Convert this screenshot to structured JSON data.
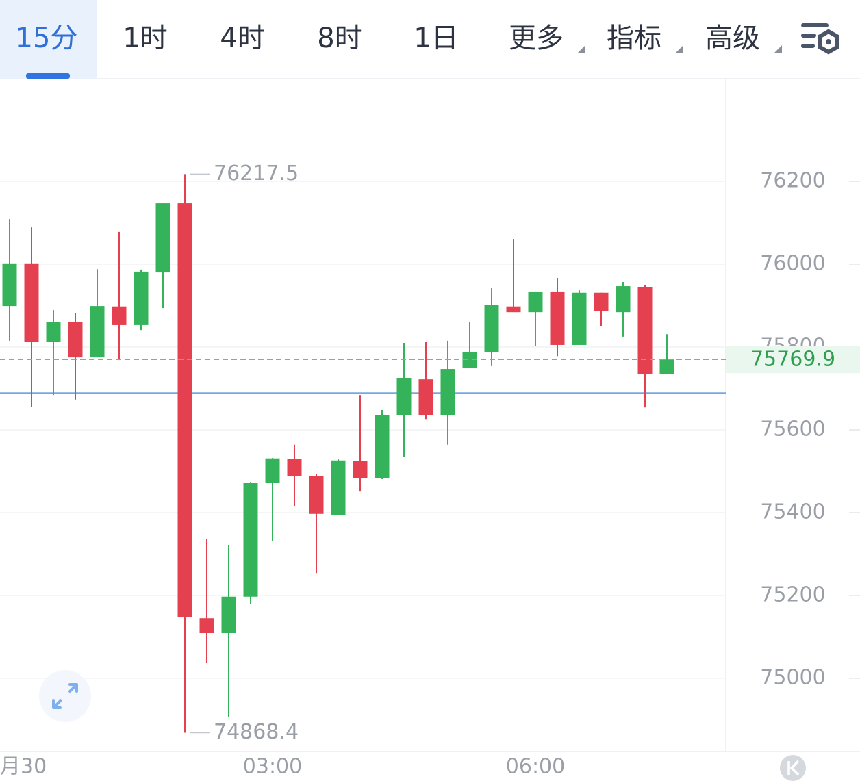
{
  "tabs": [
    {
      "label": "15分",
      "dropdown": false
    },
    {
      "label": "1时",
      "dropdown": false
    },
    {
      "label": "4时",
      "dropdown": false
    },
    {
      "label": "8时",
      "dropdown": false
    },
    {
      "label": "1日",
      "dropdown": false
    },
    {
      "label": "更多",
      "dropdown": true
    },
    {
      "label": "指标",
      "dropdown": true
    },
    {
      "label": "高级",
      "dropdown": true
    }
  ],
  "active_tab": 0,
  "chart_data": {
    "type": "candlestick",
    "categories": [
      "月30",
      null,
      null,
      null,
      null,
      null,
      null,
      null,
      null,
      null,
      null,
      null,
      "03:00",
      null,
      null,
      null,
      null,
      null,
      null,
      null,
      null,
      null,
      null,
      null,
      "06:00",
      null,
      null,
      null,
      null,
      null,
      null
    ],
    "open": [
      75899,
      76002,
      75812,
      75861,
      75775,
      75898,
      75853,
      75980,
      76147,
      75145,
      75109,
      75197,
      75471,
      75529,
      75489,
      75395,
      75524,
      75484,
      75635,
      75722,
      75636,
      75749,
      75788,
      75898,
      75884,
      75934,
      75805,
      75931,
      75884,
      75945,
      75734
    ],
    "high": [
      76109,
      76089,
      75889,
      75881,
      75988,
      76078,
      75987,
      76147,
      76217.5,
      75337,
      75322,
      75474,
      75532,
      75564,
      75493,
      75529,
      75684,
      75648,
      75810,
      75812,
      75815,
      75861,
      75942,
      76061,
      75934,
      75967,
      75937,
      75931,
      75957,
      75949,
      75831
    ],
    "low": [
      75815,
      75656,
      75684,
      75673,
      75775,
      75769,
      75841,
      75894,
      74868.4,
      75036,
      74907,
      75180,
      75332,
      75415,
      75254,
      75395,
      75451,
      75481,
      75535,
      75626,
      75564,
      75749,
      75754,
      75884,
      75803,
      75778,
      75805,
      75850,
      75825,
      75654,
      75734
    ],
    "close": [
      76002,
      75812,
      75861,
      75775,
      75899,
      75853,
      75982,
      76147,
      75147,
      75109,
      75197,
      75471,
      75531,
      75489,
      75397,
      75526,
      75484,
      75636,
      75724,
      75636,
      75747,
      75788,
      75901,
      75884,
      75934,
      75805,
      75931,
      75886,
      75947,
      75734,
      75769.9
    ],
    "up_color": "#34b35a",
    "down_color": "#e5404f",
    "ref_line": 75689,
    "ref_color": "#5b9be0",
    "ylim": [
      74823,
      76448
    ],
    "yticks": [
      75000,
      75200,
      75400,
      75600,
      75800,
      76000,
      76200
    ],
    "grid": true
  }
}
